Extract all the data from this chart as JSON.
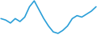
{
  "x": [
    0,
    1,
    2,
    3,
    4,
    5,
    6,
    7,
    8,
    9,
    10,
    11,
    12,
    13,
    14,
    15,
    16,
    17,
    18,
    19,
    20
  ],
  "y": [
    5,
    4.5,
    3.5,
    5,
    4,
    5.5,
    9,
    11,
    8,
    5,
    2.5,
    0.5,
    0,
    1,
    2.5,
    5,
    6,
    5.5,
    6.5,
    7.5,
    9
  ],
  "line_color": "#2b9fd8",
  "line_width": 1.2,
  "background_color": "#ffffff"
}
